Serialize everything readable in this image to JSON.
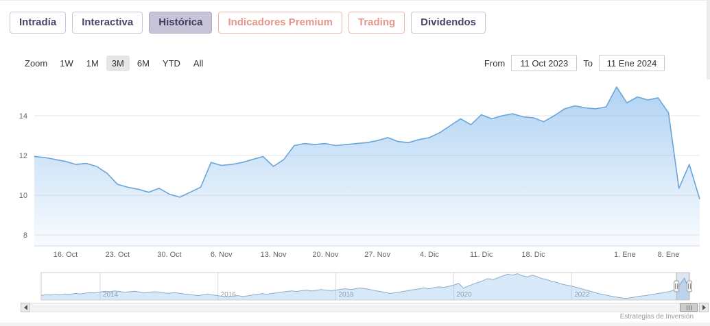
{
  "tabs": [
    {
      "label": "Intradía"
    },
    {
      "label": "Interactiva"
    },
    {
      "label": "Histórica",
      "active": true
    },
    {
      "label": "Indicadores Premium",
      "premium": true
    },
    {
      "label": "Trading",
      "premium": true
    },
    {
      "label": "Dividendos"
    }
  ],
  "range_selector": {
    "zoom_label": "Zoom",
    "buttons": [
      {
        "label": "1W"
      },
      {
        "label": "1M"
      },
      {
        "label": "3M",
        "active": true
      },
      {
        "label": "6M"
      },
      {
        "label": "YTD"
      },
      {
        "label": "All"
      }
    ],
    "from_label": "From",
    "from_value": "11 Oct 2023",
    "to_label": "To",
    "to_value": "11 Ene 2024"
  },
  "credits": "Estrategias de Inversión",
  "colors": {
    "accent_purple": "#4a4568",
    "active_tab_bg": "#c6c4d6",
    "premium_salmon": "#e5968c",
    "line_blue": "#6aa4d8",
    "grid_gray": "#e6e6e6",
    "axis_line": "#ccd6eb"
  },
  "chart_data": [
    {
      "type": "area",
      "role": "main-price-series",
      "title": "",
      "xlabel": "",
      "ylabel": "",
      "ylim": [
        7.45,
        16
      ],
      "yticks": [
        8,
        10,
        12,
        14
      ],
      "line_color": "#6aa4d8",
      "fill_from": "rgba(124,181,236,0.6)",
      "fill_to": "rgba(124,181,236,0.05)",
      "x_dates": [
        "11 Oct",
        "12 Oct",
        "13 Oct",
        "16 Oct",
        "17 Oct",
        "18 Oct",
        "19 Oct",
        "20 Oct",
        "23 Oct",
        "24 Oct",
        "25 Oct",
        "26 Oct",
        "27 Oct",
        "30 Oct",
        "31 Oct",
        "1 Nov",
        "2 Nov",
        "3 Nov",
        "6 Nov",
        "7 Nov",
        "8 Nov",
        "9 Nov",
        "10 Nov",
        "13 Nov",
        "14 Nov",
        "15 Nov",
        "16 Nov",
        "17 Nov",
        "20 Nov",
        "21 Nov",
        "22 Nov",
        "23 Nov",
        "24 Nov",
        "27 Nov",
        "28 Nov",
        "29 Nov",
        "30 Nov",
        "1 Dic",
        "4 Dic",
        "5 Dic",
        "6 Dic",
        "7 Dic",
        "8 Dic",
        "11 Dic",
        "12 Dic",
        "13 Dic",
        "14 Dic",
        "15 Dic",
        "18 Dic",
        "19 Dic",
        "20 Dic",
        "21 Dic",
        "22 Dic",
        "26 Dic",
        "27 Dic",
        "28 Dic",
        "29 Dic",
        "2 Ene",
        "3 Ene",
        "4 Ene",
        "5 Ene",
        "8 Ene",
        "9 Ene",
        "10 Ene",
        "11 Ene"
      ],
      "values": [
        11.95,
        11.9,
        11.8,
        11.7,
        11.55,
        11.6,
        11.45,
        11.1,
        10.55,
        10.4,
        10.3,
        10.15,
        10.35,
        10.05,
        9.9,
        10.15,
        10.4,
        11.65,
        11.5,
        11.55,
        11.65,
        11.8,
        11.95,
        11.45,
        11.8,
        12.5,
        12.6,
        12.55,
        12.6,
        12.5,
        12.55,
        12.6,
        12.65,
        12.75,
        12.9,
        12.7,
        12.65,
        12.8,
        12.9,
        13.15,
        13.5,
        13.85,
        13.55,
        14.05,
        13.85,
        14.0,
        14.1,
        13.95,
        13.9,
        13.7,
        14.0,
        14.35,
        14.5,
        14.4,
        14.35,
        14.45,
        15.45,
        14.65,
        14.95,
        14.8,
        14.9,
        14.15,
        10.35,
        11.55,
        9.8
      ],
      "xtick_labels": [
        {
          "label": "16. Oct",
          "i": 3
        },
        {
          "label": "23. Oct",
          "i": 8
        },
        {
          "label": "30. Oct",
          "i": 13
        },
        {
          "label": "6. Nov",
          "i": 18
        },
        {
          "label": "13. Nov",
          "i": 23
        },
        {
          "label": "20. Nov",
          "i": 28
        },
        {
          "label": "27. Nov",
          "i": 33
        },
        {
          "label": "4. Dic",
          "i": 38
        },
        {
          "label": "11. Dic",
          "i": 43
        },
        {
          "label": "18. Dic",
          "i": 48
        },
        {
          "label": "1. Ene",
          "i": 56.8
        },
        {
          "label": "8. Ene",
          "i": 61
        }
      ]
    },
    {
      "type": "area",
      "role": "navigator-series",
      "x_start_year": 2013,
      "x_end_year": 2024,
      "ylim": [
        6.5,
        16.5
      ],
      "year_ticks": [
        2014,
        2016,
        2018,
        2020,
        2022
      ],
      "selected_range_years": [
        2023.78,
        2024.0
      ],
      "line_color": "#8cabc9",
      "fill_color": "rgba(124,181,236,0.3)",
      "values": [
        8.2,
        8.4,
        8.3,
        8.5,
        8.4,
        8.6,
        8.6,
        8.9,
        8.7,
        9.0,
        9.2,
        9.1,
        9.4,
        9.7,
        9.5,
        9.8,
        9.6,
        9.3,
        9.5,
        9.7,
        9.4,
        9.1,
        9.3,
        9.5,
        9.4,
        9.1,
        8.9,
        9.2,
        9.0,
        8.7,
        8.5,
        8.3,
        8.1,
        8.4,
        8.6,
        8.3,
        8.1,
        7.8,
        7.6,
        7.9,
        8.1,
        7.8,
        8.0,
        8.3,
        8.6,
        8.8,
        8.6,
        8.9,
        9.1,
        9.4,
        9.6,
        9.8,
        9.6,
        9.9,
        10.1,
        9.8,
        10.0,
        10.3,
        10.1,
        9.9,
        10.1,
        10.4,
        10.6,
        10.3,
        10.6,
        10.9,
        10.6,
        10.3,
        9.9,
        9.6,
        9.3,
        8.9,
        9.1,
        9.4,
        9.7,
        10.0,
        10.3,
        10.6,
        10.9,
        10.6,
        11.0,
        11.3,
        11.1,
        11.5,
        11.9,
        12.6,
        10.8,
        11.6,
        12.3,
        12.9,
        13.6,
        14.3,
        13.9,
        14.6,
        15.3,
        15.9,
        15.6,
        16.1,
        15.3,
        14.9,
        15.6,
        15.0,
        14.3,
        13.9,
        13.3,
        12.9,
        12.3,
        11.9,
        11.6,
        11.1,
        10.6,
        10.1,
        9.6,
        9.1,
        8.6,
        8.3,
        7.9,
        7.6,
        7.3,
        7.1,
        7.3,
        7.6,
        7.9,
        8.1,
        8.4,
        8.7,
        9.0,
        9.3,
        9.6,
        10.2,
        12.0,
        14.5,
        9.8
      ]
    }
  ]
}
